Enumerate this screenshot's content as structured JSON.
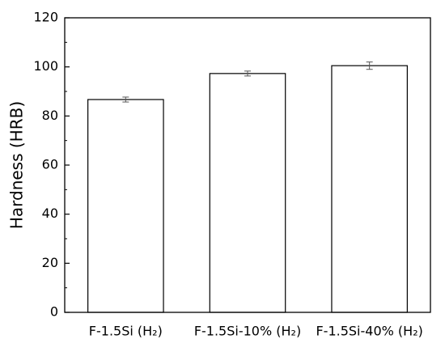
{
  "chart_data": {
    "type": "bar",
    "y_label": "Hardness (HRB)",
    "categories": [
      "F-1.5Si (H₂)",
      "F-1.5Si-10% (H₂)",
      "F-1.5Si-40% (H₂)"
    ],
    "category_colors": [
      "#000000",
      "#e8141c",
      "#2b4fd9"
    ],
    "values": [
      86.7,
      97.3,
      100.5
    ],
    "errors": [
      1,
      1,
      1.5
    ],
    "color": "#ffffff",
    "edge_color": "#000000",
    "ylim": [
      0,
      120
    ],
    "yticks": [
      0,
      20,
      40,
      60,
      80,
      100,
      120
    ],
    "minor_yticks": [
      10,
      30,
      50,
      70,
      90,
      110
    ]
  }
}
